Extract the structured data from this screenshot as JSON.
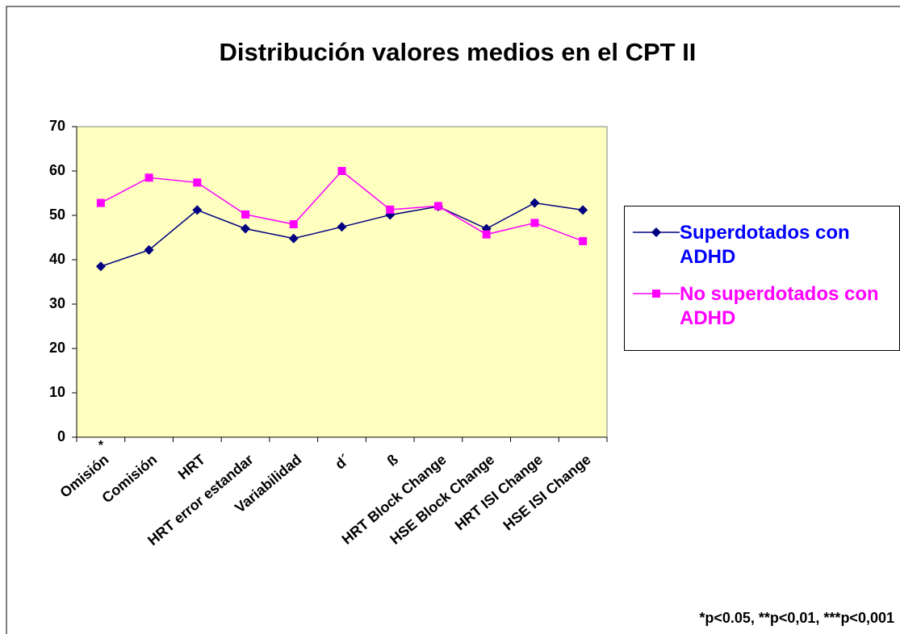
{
  "chart_data": {
    "type": "line",
    "title": "Distribución valores medios en el CPT II",
    "categories": [
      "Omisión",
      "Comisión",
      "HRT",
      "HRT error estandar",
      "Variabilidad",
      "d´",
      "ß",
      "HRT Block Change",
      "HSE Block Change",
      "HRT ISI Change",
      "HSE ISI Change"
    ],
    "series": [
      {
        "name": "Superdotados con ADHD",
        "color": "#000080",
        "label_color": "#0000ff",
        "marker": "diamond",
        "values": [
          38.5,
          42.2,
          51.2,
          47,
          44.8,
          47.4,
          50.1,
          52,
          47,
          52.8,
          51.2
        ]
      },
      {
        "name": "No superdotados con ADHD",
        "color": "#ff00ff",
        "label_color": "#ff00ff",
        "marker": "square",
        "values": [
          52.8,
          58.5,
          57.4,
          50.2,
          48,
          60,
          51.3,
          52.1,
          45.7,
          48.3,
          44.2
        ]
      }
    ],
    "ylim": [
      0,
      70
    ],
    "yticks": [
      0,
      10,
      20,
      30,
      40,
      50,
      60,
      70
    ],
    "grid": false,
    "legend": "right",
    "plot_background": "#ffffc0",
    "annotations": [
      "*",
      "*p<0.05, **p<0,01, ***p<0,001"
    ]
  }
}
